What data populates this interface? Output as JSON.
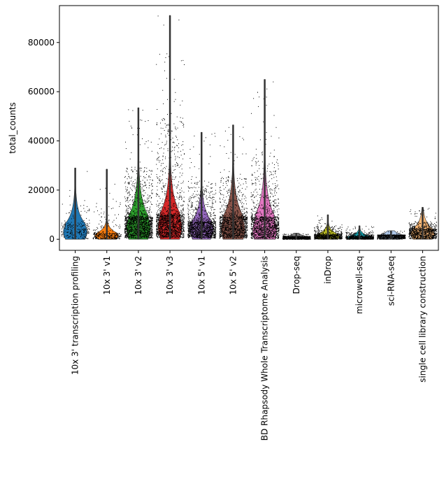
{
  "chart_data": {
    "type": "violin",
    "ylabel": "total_counts",
    "xlabel": "",
    "ylim": [
      -4500,
      95000
    ],
    "yticks": [
      0,
      20000,
      40000,
      60000,
      80000
    ],
    "ytick_labels": [
      "0",
      "20000",
      "40000",
      "60000",
      "80000"
    ],
    "grid": false,
    "categories": [
      "10x 3' transcription profiling",
      "10x 3' v1",
      "10x 3' v2",
      "10x 3' v3",
      "10x 5' v1",
      "10x 5' v2",
      "BD Rhapsody Whole Transcriptome Analysis",
      "Drop-seq",
      "inDrop",
      "microwell-seq",
      "sci-RNA-seq",
      "single cell library construction"
    ],
    "series": [
      {
        "max": 29000,
        "median": 3000,
        "q1": 1200,
        "q3": 6000,
        "color": "#1f77b4",
        "strip_density": 0.15
      },
      {
        "max": 28500,
        "median": 1500,
        "q1": 800,
        "q3": 2500,
        "color": "#ff7f0e",
        "strip_density": 0.2
      },
      {
        "max": 53500,
        "median": 4500,
        "q1": 2000,
        "q3": 9000,
        "color": "#2ca02c",
        "strip_density": 1.0
      },
      {
        "max": 91000,
        "median": 5000,
        "q1": 2500,
        "q3": 10000,
        "color": "#d62728",
        "strip_density": 1.0
      },
      {
        "max": 43500,
        "median": 4000,
        "q1": 2000,
        "q3": 7000,
        "color": "#9467bd",
        "strip_density": 0.9
      },
      {
        "max": 46500,
        "median": 4000,
        "q1": 2000,
        "q3": 9000,
        "color": "#8c564b",
        "strip_density": 0.8
      },
      {
        "max": 65000,
        "median": 3500,
        "q1": 1500,
        "q3": 9000,
        "color": "#e377c2",
        "strip_density": 0.85
      },
      {
        "max": 2500,
        "median": 600,
        "q1": 300,
        "q3": 1100,
        "color": "#7f7f7f",
        "strip_density": 0.4
      },
      {
        "max": 10000,
        "median": 1000,
        "q1": 500,
        "q3": 2000,
        "color": "#bcbd22",
        "strip_density": 0.45
      },
      {
        "max": 5500,
        "median": 800,
        "q1": 400,
        "q3": 1300,
        "color": "#17becf",
        "strip_density": 0.45
      },
      {
        "max": 3500,
        "median": 1000,
        "q1": 500,
        "q3": 1800,
        "color": "#aec7e8",
        "strip_density": 0.45
      },
      {
        "max": 13000,
        "median": 2000,
        "q1": 1000,
        "q3": 4000,
        "color": "#ffbb78",
        "strip_density": 0.55
      }
    ]
  }
}
